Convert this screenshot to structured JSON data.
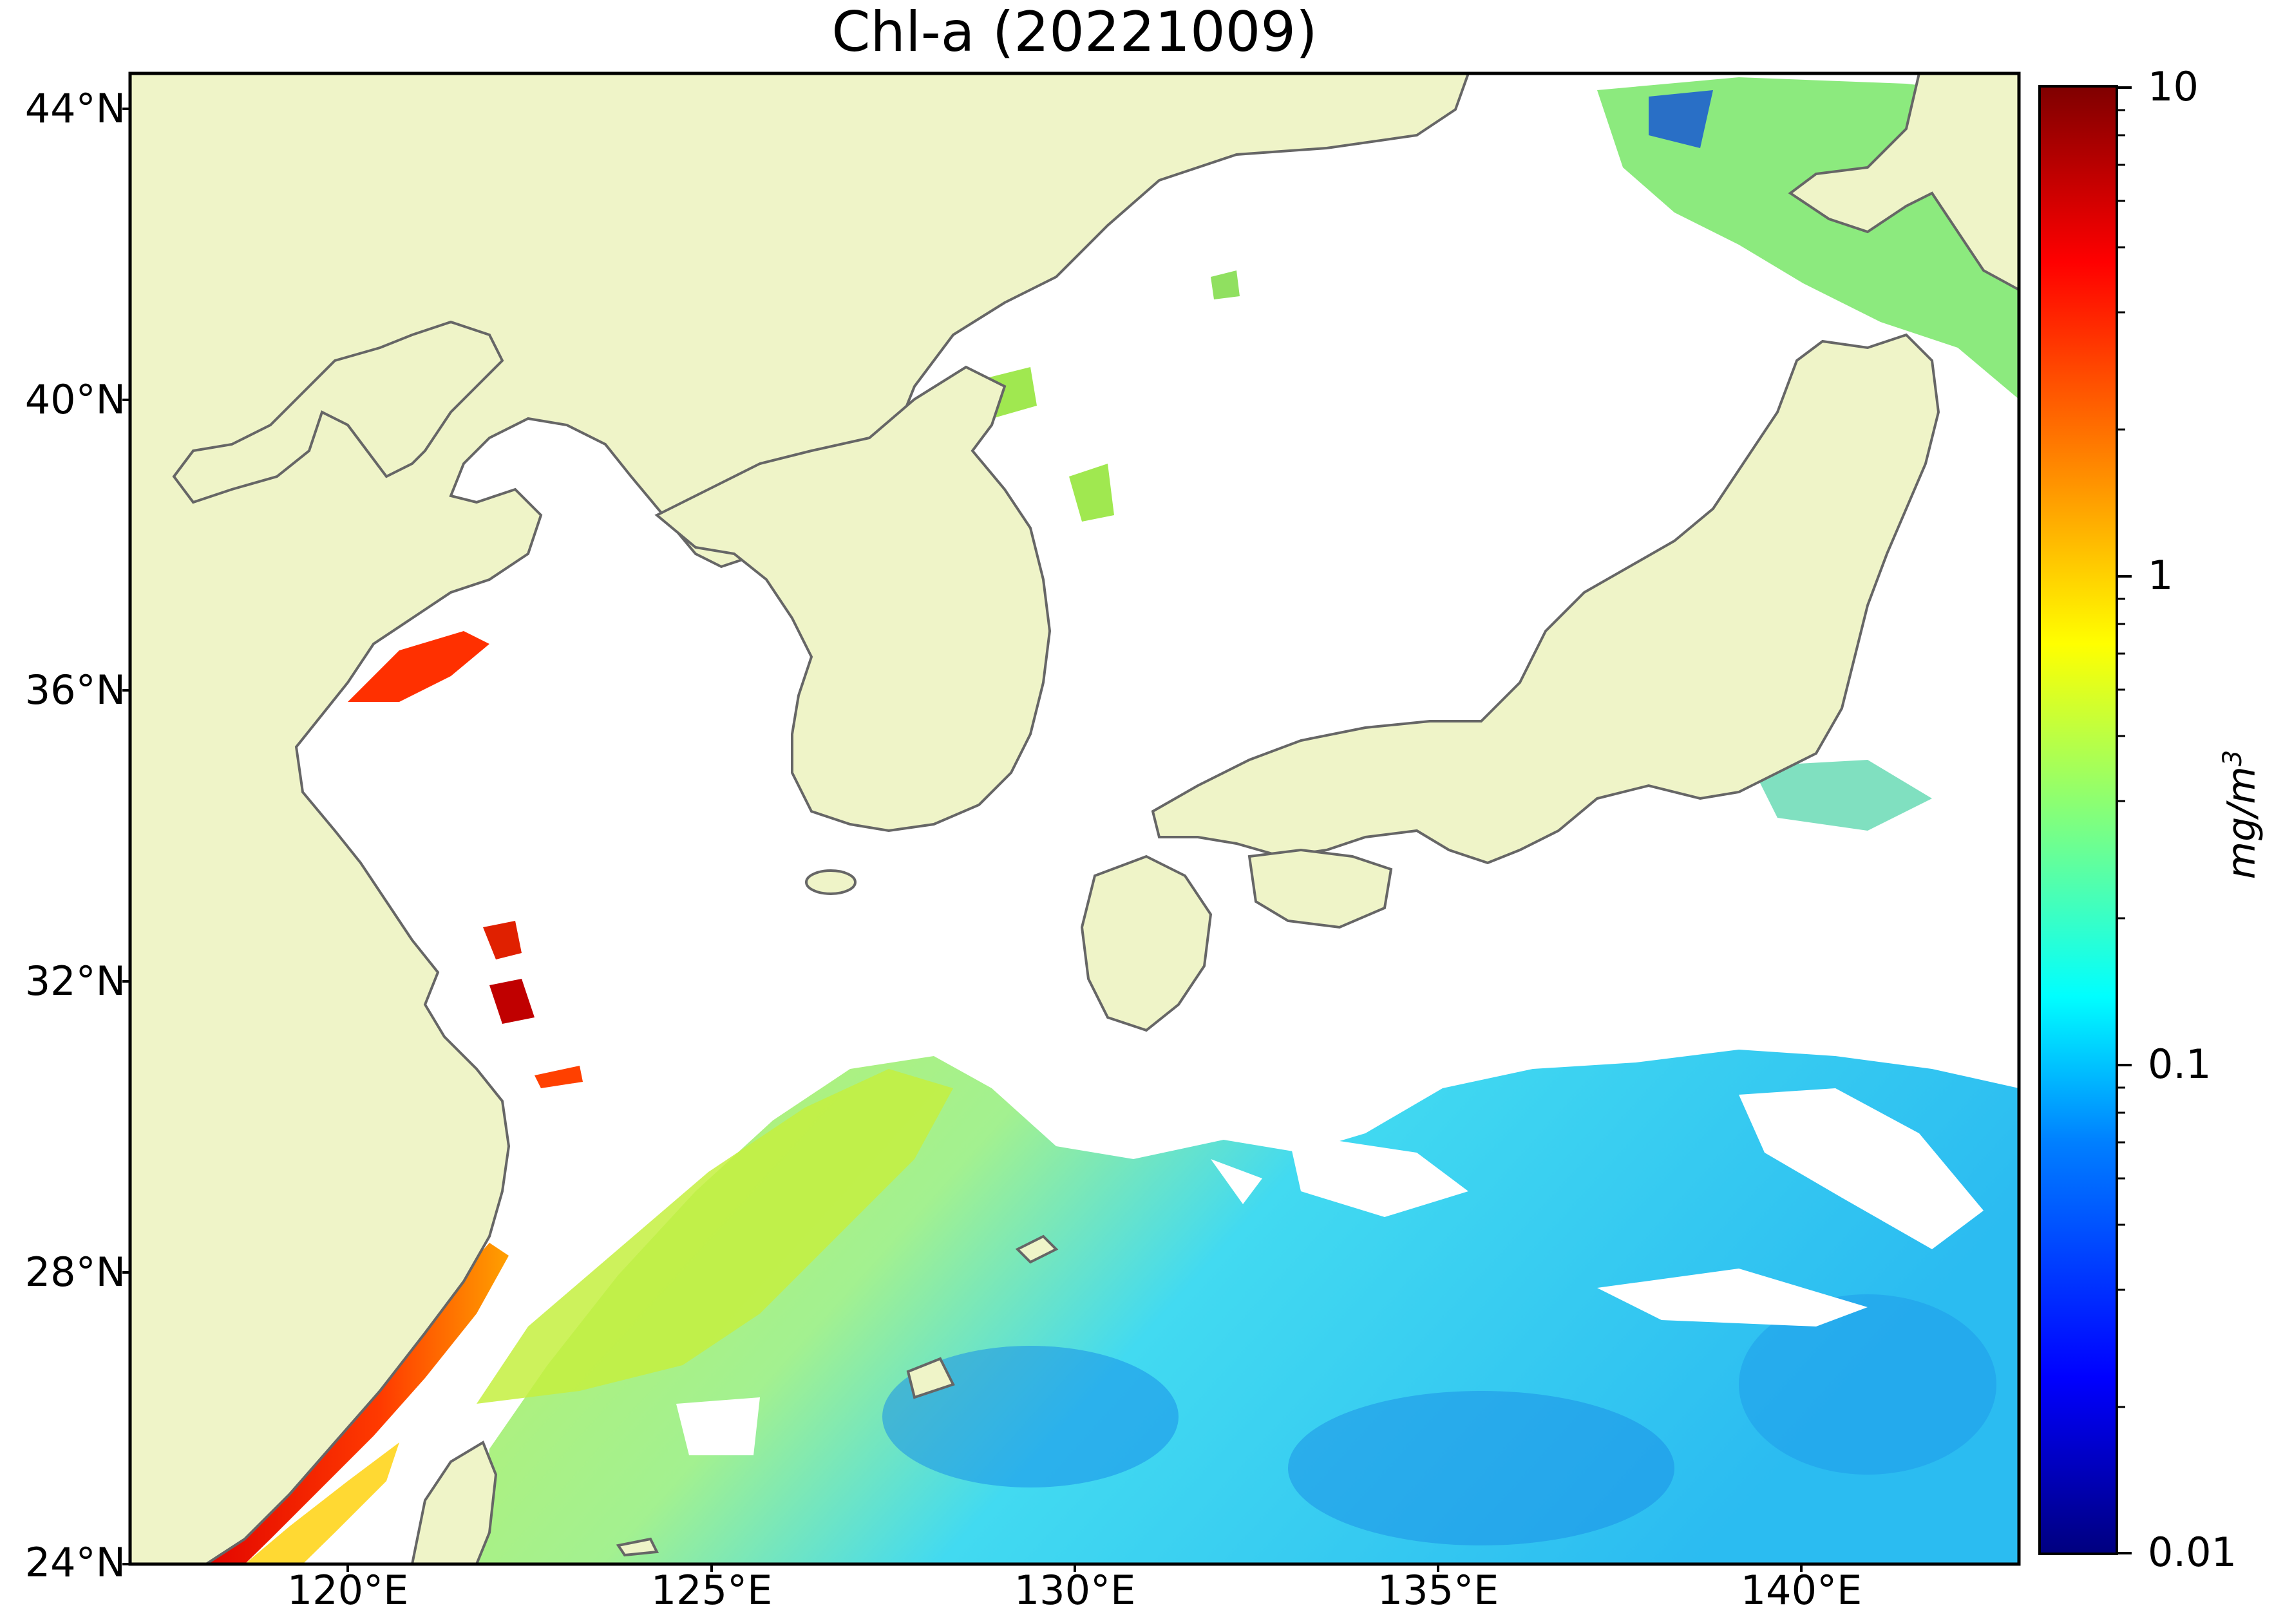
{
  "title": "Chl-a (20221009)",
  "map": {
    "lon_range": [
      117,
      143
    ],
    "lat_range": [
      24,
      44.5
    ],
    "lat_tick_labels": [
      "44°N",
      "40°N",
      "36°N",
      "32°N",
      "28°N",
      "24°N"
    ],
    "lon_tick_labels": [
      "120°E",
      "125°E",
      "130°E",
      "135°E",
      "140°E"
    ],
    "land_color": "#eff4c8",
    "coastline_color": "#666666",
    "no_data_color": "#ffffff"
  },
  "colorbar": {
    "label": "mg/m",
    "label_superscript": "3",
    "scale": "log",
    "range": [
      0.01,
      10
    ],
    "tick_labels": [
      "10",
      "1",
      "0.1",
      "0.01"
    ],
    "colormap": "jet",
    "colors": [
      "#00007f",
      "#0000ff",
      "#007fff",
      "#00ffff",
      "#7fff7f",
      "#ffff00",
      "#ff7f00",
      "#ff0000",
      "#7f0000"
    ]
  }
}
